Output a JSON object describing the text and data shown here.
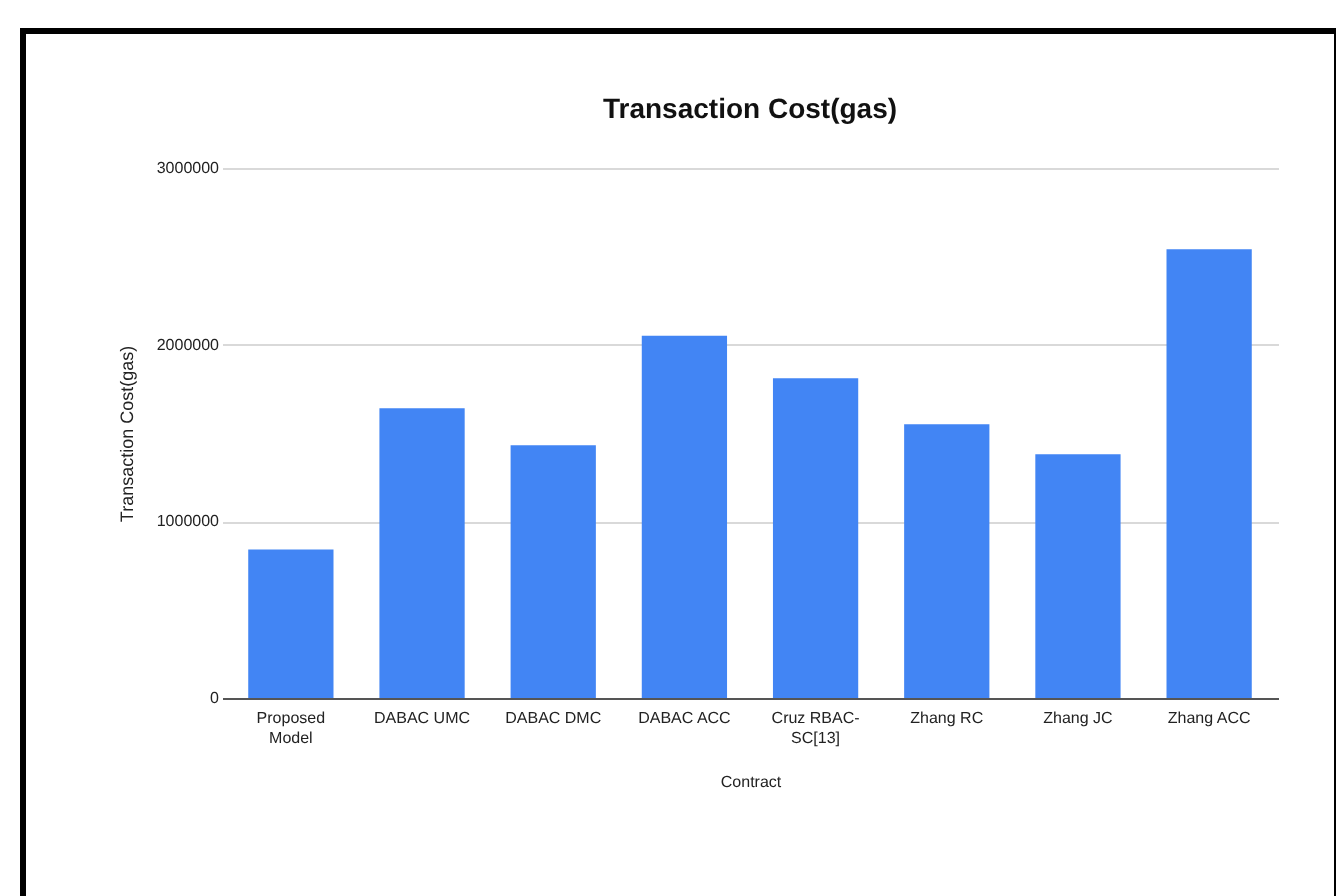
{
  "chart_data": {
    "type": "bar",
    "title": "Transaction Cost(gas)",
    "xlabel": "Contract",
    "ylabel": "Transaction Cost(gas)",
    "categories": [
      "Proposed Model",
      "DABAC UMC",
      "DABAC DMC",
      "DABAC ACC",
      "Cruz RBAC-SC[13]",
      "Zhang RC",
      "Zhang JC",
      "Zhang ACC"
    ],
    "values": [
      840000,
      1640000,
      1430000,
      2050000,
      1810000,
      1550000,
      1380000,
      2540000
    ],
    "color": "#4285f4",
    "ylim": [
      0,
      3000000
    ],
    "yticks": [
      0,
      1000000,
      2000000,
      3000000
    ],
    "grid": "y"
  }
}
